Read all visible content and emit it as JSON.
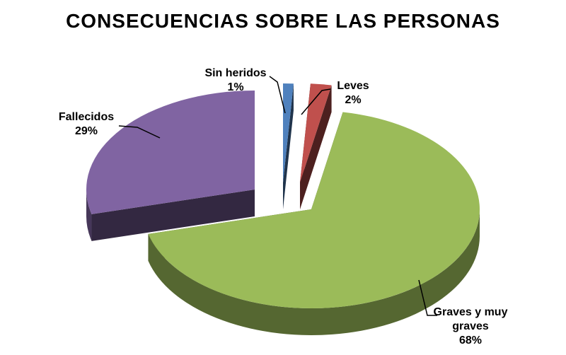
{
  "chart_data": {
    "type": "pie",
    "title": "CONSECUENCIAS SOBRE LAS PERSONAS",
    "slices": [
      {
        "label": "Sin heridos",
        "value": 1,
        "color": "#4F81BD"
      },
      {
        "label": "Leves",
        "value": 2,
        "color": "#C0504D"
      },
      {
        "label": "Graves y muy graves",
        "value": 68,
        "color": "#9BBB59"
      },
      {
        "label": "Fallecidos",
        "value": 29,
        "color": "#8064A2"
      }
    ],
    "value_suffix": "%",
    "legend": "none",
    "style": "3d-exploded"
  }
}
